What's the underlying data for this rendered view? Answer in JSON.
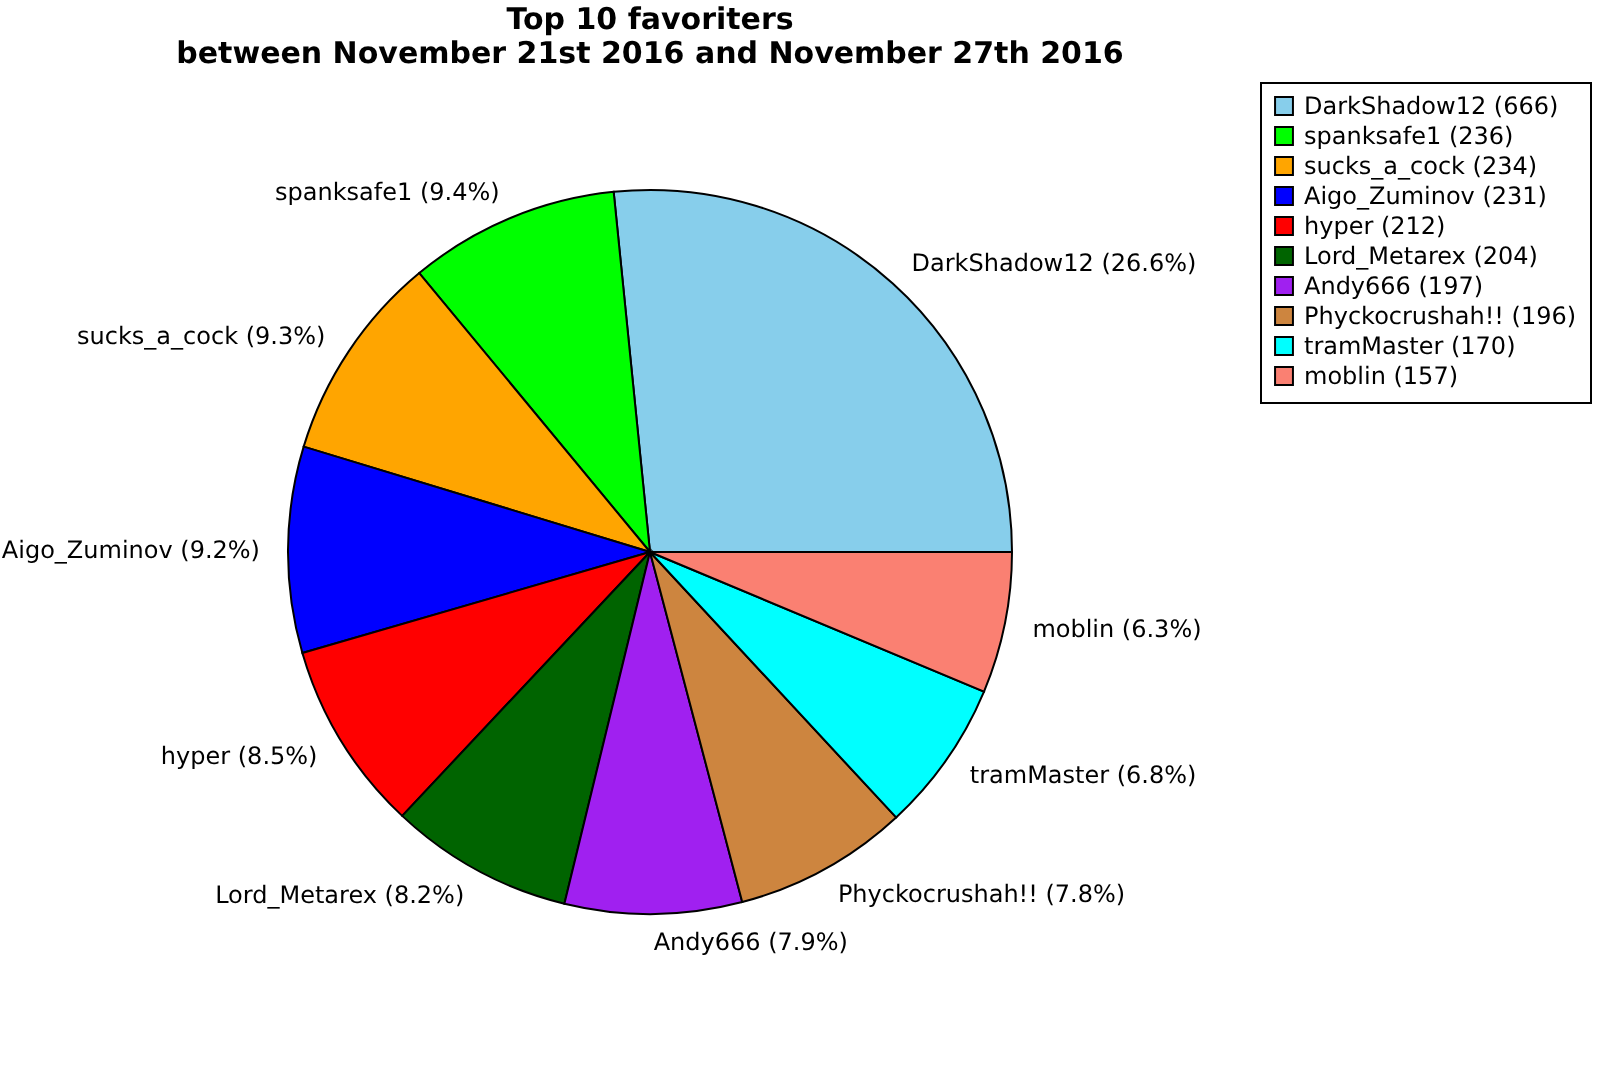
{
  "chart_data": {
    "type": "pie",
    "title": "Top 10 favoriters\nbetween November 21st 2016 and November 27th 2016",
    "categories": [
      "DarkShadow12 (666)",
      "spanksafe1 (236)",
      "sucks_a_cock (234)",
      "Aigo_Zuminov (231)",
      "hyper (212)",
      "Lord_Metarex (204)",
      "Andy666 (197)",
      "Phyckocrushah!! (196)",
      "tramMaster (170)",
      "moblin (157)"
    ],
    "values": [
      26.6,
      9.4,
      9.3,
      9.2,
      8.5,
      8.2,
      7.9,
      7.8,
      6.8,
      6.3
    ],
    "annotations": [
      "DarkShadow12 (26.6%)",
      "spanksafe1 (9.4%)",
      "sucks_a_cock (9.3%)",
      "Aigo_Zuminov (9.2%)",
      "hyper (8.5%)",
      "Lord_Metarex (8.2%)",
      "Andy666 (7.9%)",
      "Phyckocrushah!! (7.8%)",
      "tramMaster (6.8%)",
      "moblin (6.3%)"
    ],
    "colors": [
      "#87ceeb",
      "#00ff00",
      "#ffa500",
      "#0000ff",
      "#ff0000",
      "#006400",
      "#a020f0",
      "#cd853f",
      "#00ffff",
      "#fa8072"
    ],
    "legend": "top right"
  }
}
